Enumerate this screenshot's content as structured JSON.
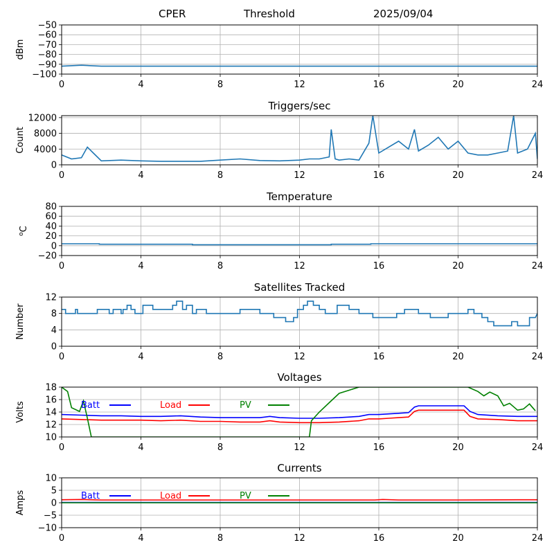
{
  "header": {
    "site": "CPER",
    "label": "Threshold",
    "date": "2025/09/04"
  },
  "colors": {
    "series": "#1f77b4",
    "batt": "#0000ff",
    "load": "#ff0000",
    "pv": "#008000",
    "grid": "#b0b0b0"
  },
  "chart_data": [
    {
      "type": "line",
      "title": "",
      "ylabel": "dBm",
      "xlim": [
        0,
        24
      ],
      "ylim": [
        -100,
        -50
      ],
      "xticks": [
        0,
        4,
        8,
        12,
        16,
        20,
        24
      ],
      "yticks": [
        -100,
        -90,
        -80,
        -70,
        -60,
        -50
      ],
      "grid": true,
      "series": [
        {
          "x": [
            0,
            1,
            2,
            3,
            4,
            6,
            8,
            10,
            12,
            14,
            16,
            18,
            20,
            22,
            24
          ],
          "y": [
            -92,
            -91,
            -92,
            -92,
            -92,
            -92,
            -92,
            -92,
            -92,
            -92,
            -92,
            -92,
            -92,
            -92,
            -92
          ]
        }
      ]
    },
    {
      "type": "line",
      "title": "Triggers/sec",
      "ylabel": "Count",
      "xlim": [
        0,
        24
      ],
      "ylim": [
        0,
        12500
      ],
      "xticks": [
        0,
        4,
        8,
        12,
        16,
        20,
        24
      ],
      "yticks": [
        0,
        4000,
        8000,
        12000
      ],
      "grid": true,
      "series": [
        {
          "x": [
            0,
            0.5,
            1,
            1.3,
            1.6,
            2,
            3,
            4,
            5,
            6,
            7,
            8,
            9,
            10,
            11,
            12,
            12.5,
            13,
            13.5,
            13.6,
            13.8,
            14,
            14.5,
            15,
            15.5,
            15.7,
            16,
            16.5,
            17,
            17.5,
            17.8,
            18,
            18.5,
            19,
            19.5,
            20,
            20.5,
            21,
            21.5,
            22,
            22.5,
            22.8,
            23,
            23.5,
            23.9,
            24
          ],
          "y": [
            2500,
            1500,
            1800,
            4500,
            3000,
            1000,
            1200,
            1000,
            900,
            900,
            900,
            1200,
            1500,
            1100,
            1000,
            1200,
            1500,
            1500,
            2000,
            9000,
            1500,
            1200,
            1500,
            1200,
            5500,
            12500,
            3000,
            4500,
            6000,
            4000,
            9000,
            3500,
            5000,
            7000,
            4000,
            6000,
            3000,
            2500,
            2500,
            3000,
            3500,
            12500,
            3000,
            4000,
            8000,
            1500
          ]
        }
      ]
    },
    {
      "type": "line",
      "title": "Temperature",
      "ylabel": "oC",
      "xlim": [
        0,
        24
      ],
      "ylim": [
        -20,
        80
      ],
      "xticks": [
        0,
        4,
        8,
        12,
        16,
        20,
        24
      ],
      "yticks": [
        -20,
        0,
        20,
        40,
        60,
        80
      ],
      "grid": true,
      "series": [
        {
          "x": [
            0,
            1.9,
            1.9,
            6.6,
            6.6,
            13.6,
            13.6,
            15.6,
            15.6,
            24
          ],
          "y": [
            4,
            4,
            3,
            3,
            2,
            2,
            3,
            3,
            4,
            4
          ]
        }
      ]
    },
    {
      "type": "line",
      "title": "Satellites Tracked",
      "ylabel": "Number",
      "xlim": [
        0,
        24
      ],
      "ylim": [
        0,
        12
      ],
      "xticks": [
        0,
        4,
        8,
        12,
        16,
        20,
        24
      ],
      "yticks": [
        0,
        4,
        8,
        12
      ],
      "grid": true,
      "series": [
        {
          "x": [
            0,
            0.2,
            0.2,
            0.7,
            0.7,
            0.8,
            0.8,
            1.8,
            1.8,
            2.4,
            2.4,
            2.6,
            2.6,
            3.0,
            3.0,
            3.1,
            3.1,
            3.3,
            3.3,
            3.5,
            3.5,
            3.7,
            3.7,
            4.1,
            4.1,
            4.6,
            4.6,
            5.6,
            5.6,
            5.8,
            5.8,
            6.1,
            6.1,
            6.3,
            6.3,
            6.6,
            6.6,
            6.8,
            6.8,
            7.3,
            7.3,
            9.0,
            9.0,
            10.0,
            10.0,
            10.7,
            10.7,
            11.3,
            11.3,
            11.7,
            11.7,
            11.9,
            11.9,
            12.2,
            12.2,
            12.4,
            12.4,
            12.7,
            12.7,
            13.0,
            13.0,
            13.3,
            13.3,
            13.9,
            13.9,
            14.5,
            14.5,
            15.0,
            15.0,
            15.7,
            15.7,
            16.9,
            16.9,
            17.3,
            17.3,
            18.0,
            18.0,
            18.6,
            18.6,
            19.5,
            19.5,
            20.5,
            20.5,
            20.8,
            20.8,
            21.2,
            21.2,
            21.5,
            21.5,
            21.8,
            21.8,
            22.7,
            22.7,
            23.0,
            23.0,
            23.6,
            23.6,
            23.9,
            24
          ],
          "y": [
            9,
            9,
            8,
            8,
            9,
            9,
            8,
            8,
            9,
            9,
            8,
            8,
            9,
            9,
            8,
            8,
            9,
            9,
            10,
            10,
            9,
            9,
            8,
            8,
            10,
            10,
            9,
            9,
            10,
            10,
            11,
            11,
            9,
            9,
            10,
            10,
            8,
            8,
            9,
            9,
            8,
            8,
            9,
            9,
            8,
            8,
            7,
            7,
            6,
            6,
            7,
            7,
            9,
            9,
            10,
            10,
            11,
            11,
            10,
            10,
            9,
            9,
            8,
            8,
            10,
            10,
            9,
            9,
            8,
            8,
            7,
            7,
            8,
            8,
            9,
            9,
            8,
            8,
            7,
            7,
            8,
            8,
            9,
            9,
            8,
            8,
            7,
            7,
            6,
            6,
            5,
            5,
            6,
            6,
            5,
            5,
            7,
            7,
            8
          ]
        }
      ]
    },
    {
      "type": "line",
      "title": "Voltages",
      "ylabel": "Volts",
      "xlim": [
        0,
        24
      ],
      "ylim": [
        10,
        18
      ],
      "xticks": [
        0,
        4,
        8,
        12,
        16,
        20,
        24
      ],
      "yticks": [
        10,
        12,
        14,
        16,
        18
      ],
      "grid": true,
      "legend": "upper-left, horizontal",
      "series": [
        {
          "name": "Batt",
          "color": "batt",
          "x": [
            0,
            1,
            2,
            3,
            4,
            5,
            6,
            7,
            8,
            9,
            10,
            10.5,
            11,
            12,
            13,
            14,
            15,
            15.5,
            16,
            16.5,
            17,
            17.5,
            17.8,
            18,
            19,
            20,
            20.3,
            20.6,
            21,
            22,
            23,
            24
          ],
          "y": [
            13.6,
            13.5,
            13.4,
            13.4,
            13.3,
            13.3,
            13.4,
            13.2,
            13.1,
            13.1,
            13.1,
            13.3,
            13.1,
            13.0,
            13.0,
            13.1,
            13.3,
            13.6,
            13.6,
            13.7,
            13.8,
            13.9,
            14.8,
            15.0,
            15.0,
            15.0,
            15.0,
            14.1,
            13.6,
            13.4,
            13.3,
            13.3
          ]
        },
        {
          "name": "Load",
          "color": "load",
          "x": [
            0,
            1,
            2,
            3,
            4,
            5,
            6,
            7,
            8,
            9,
            10,
            10.5,
            11,
            12,
            13,
            14,
            15,
            15.5,
            16,
            16.5,
            17,
            17.5,
            17.8,
            18,
            19,
            20,
            20.3,
            20.6,
            21,
            22,
            23,
            24
          ],
          "y": [
            12.9,
            12.8,
            12.7,
            12.7,
            12.7,
            12.6,
            12.7,
            12.5,
            12.5,
            12.4,
            12.4,
            12.6,
            12.4,
            12.3,
            12.3,
            12.4,
            12.6,
            12.9,
            12.9,
            13.0,
            13.1,
            13.2,
            14.1,
            14.3,
            14.3,
            14.3,
            14.3,
            13.3,
            12.9,
            12.8,
            12.6,
            12.6
          ]
        },
        {
          "name": "PV",
          "color": "pv",
          "x": [
            0,
            0.3,
            0.5,
            0.9,
            1.1,
            1.3,
            1.5,
            12.5,
            12.6,
            13.0,
            13.5,
            14.0,
            14.5,
            15.0,
            15.5,
            16.0,
            17.0,
            18.0,
            19.0,
            20.0,
            20.5,
            21.0,
            21.3,
            21.6,
            22.0,
            22.3,
            22.6,
            23.0,
            23.3,
            23.6,
            23.9
          ],
          "y": [
            18,
            17.3,
            14.7,
            14.1,
            15.8,
            13.0,
            10.0,
            10.0,
            12.6,
            14.0,
            15.5,
            17.0,
            17.5,
            18.0,
            18.0,
            18.0,
            18.0,
            18.0,
            18.0,
            18.0,
            18.0,
            17.3,
            16.6,
            17.2,
            16.6,
            15.0,
            15.4,
            14.3,
            14.5,
            15.3,
            14.2
          ]
        }
      ]
    },
    {
      "type": "line",
      "title": "Currents",
      "ylabel": "Amps",
      "xlim": [
        0,
        24
      ],
      "ylim": [
        -10,
        10
      ],
      "xticks": [
        0,
        4,
        8,
        12,
        16,
        20,
        24
      ],
      "yticks": [
        -10,
        -5,
        0,
        5,
        10
      ],
      "grid": true,
      "legend": "upper-left, horizontal",
      "series": [
        {
          "name": "Batt",
          "color": "batt",
          "x": [
            0,
            4,
            8,
            12,
            16,
            20,
            24
          ],
          "y": [
            0.1,
            0.1,
            0.1,
            0.1,
            0.1,
            0.1,
            0.1
          ]
        },
        {
          "name": "Load",
          "color": "load",
          "x": [
            0,
            1,
            2,
            4,
            8,
            12,
            15.8,
            16.2,
            17,
            20,
            23,
            24
          ],
          "y": [
            1.2,
            1.3,
            1.1,
            1.1,
            1.1,
            1.1,
            1.1,
            1.3,
            1.1,
            1.1,
            1.2,
            1.2
          ]
        },
        {
          "name": "PV",
          "color": "pv",
          "x": [
            0,
            24
          ],
          "y": [
            0,
            0
          ]
        }
      ]
    }
  ]
}
